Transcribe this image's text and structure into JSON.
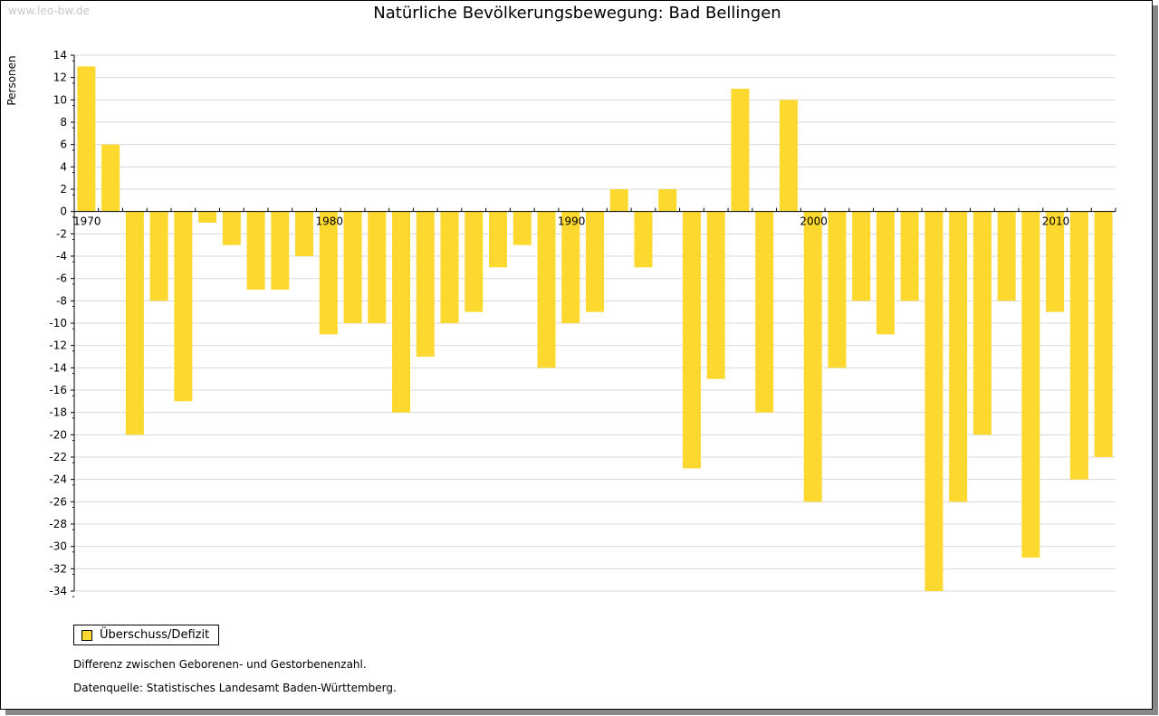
{
  "watermark": "www.leo-bw.de",
  "chart_data": {
    "type": "bar",
    "title": "Natürliche Bevölkerungsbewegung: Bad Bellingen",
    "xlabel": "",
    "ylabel": "Personen",
    "ylim": [
      -34,
      14
    ],
    "yticks": [
      14,
      12,
      10,
      8,
      6,
      4,
      2,
      0,
      -2,
      -4,
      -6,
      -8,
      -10,
      -12,
      -14,
      -16,
      -18,
      -20,
      -22,
      -24,
      -26,
      -28,
      -30,
      -32,
      -34
    ],
    "xtick_labels": [
      "1970",
      "1980",
      "1990",
      "2000",
      "2010"
    ],
    "grid": true,
    "legend_position": "bottom-left",
    "color": "#fdd82e",
    "series": [
      {
        "name": "Überschuss/Defizit",
        "categories": [
          1970,
          1971,
          1972,
          1973,
          1974,
          1975,
          1976,
          1977,
          1978,
          1979,
          1980,
          1981,
          1982,
          1983,
          1984,
          1985,
          1986,
          1987,
          1988,
          1989,
          1990,
          1991,
          1992,
          1993,
          1994,
          1995,
          1996,
          1997,
          1998,
          1999,
          2000,
          2001,
          2002,
          2003,
          2004,
          2005,
          2006,
          2007,
          2008,
          2009,
          2010,
          2011,
          2012
        ],
        "values": [
          13,
          6,
          -20,
          -8,
          -17,
          -1,
          -3,
          -7,
          -7,
          -4,
          -11,
          -10,
          -10,
          -18,
          -13,
          -10,
          -9,
          -5,
          -3,
          -14,
          -10,
          -9,
          2,
          -5,
          2,
          -23,
          -15,
          11,
          -18,
          10,
          -26,
          -14,
          -8,
          -11,
          -8,
          -34,
          -26,
          -20,
          -8,
          -31,
          -9,
          -24,
          -22
        ]
      }
    ]
  },
  "notes": {
    "line1": "Differenz zwischen Geborenen- und Gestorbenenzahl.",
    "line2": "Datenquelle: Statistisches Landesamt Baden-Württemberg."
  }
}
